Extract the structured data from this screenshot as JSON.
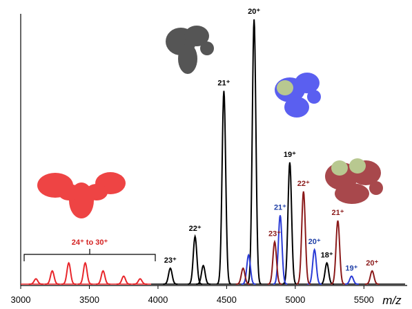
{
  "chart_data": {
    "type": "peaks",
    "x_label": "m/z",
    "xlim": [
      3000,
      5800
    ],
    "xticks": [
      3000,
      3500,
      4000,
      4500,
      5000,
      5500
    ],
    "ylim": [
      0,
      100
    ],
    "range_label": "24⁺ to 30⁺",
    "series": [
      {
        "color": "#e8262b",
        "label_color": "#d42020",
        "x": [
          3111,
          3230,
          3350,
          3470,
          3600,
          3750,
          3870
        ],
        "values": [
          2,
          5,
          8,
          8,
          5,
          3,
          2
        ],
        "labels": [
          null,
          null,
          null,
          null,
          null,
          null,
          null
        ]
      },
      {
        "color": "#000000",
        "label_color": "#000000",
        "x": [
          4090,
          4270,
          4330,
          4480,
          4700,
          4960,
          5230
        ],
        "values": [
          6,
          18,
          7,
          73,
          100,
          46,
          8
        ],
        "labels": [
          "23⁺",
          "22⁺",
          null,
          "21⁺",
          "20⁺",
          "19⁺",
          "18⁺"
        ]
      },
      {
        "color": "#2a3bd6",
        "label_color": "#1f3fa6",
        "x": [
          4660,
          4890,
          5140,
          5410
        ],
        "values": [
          11,
          26,
          13,
          3
        ],
        "labels": [
          null,
          "21⁺",
          "20⁺",
          "19⁺"
        ]
      },
      {
        "color": "#8b1a1a",
        "label_color": "#8b1a1a",
        "x": [
          4620,
          4850,
          5060,
          5310,
          5560
        ],
        "values": [
          6,
          16,
          35,
          24,
          5
        ],
        "labels": [
          null,
          "23⁺",
          "22⁺",
          "21⁺",
          "20⁺"
        ]
      }
    ]
  }
}
